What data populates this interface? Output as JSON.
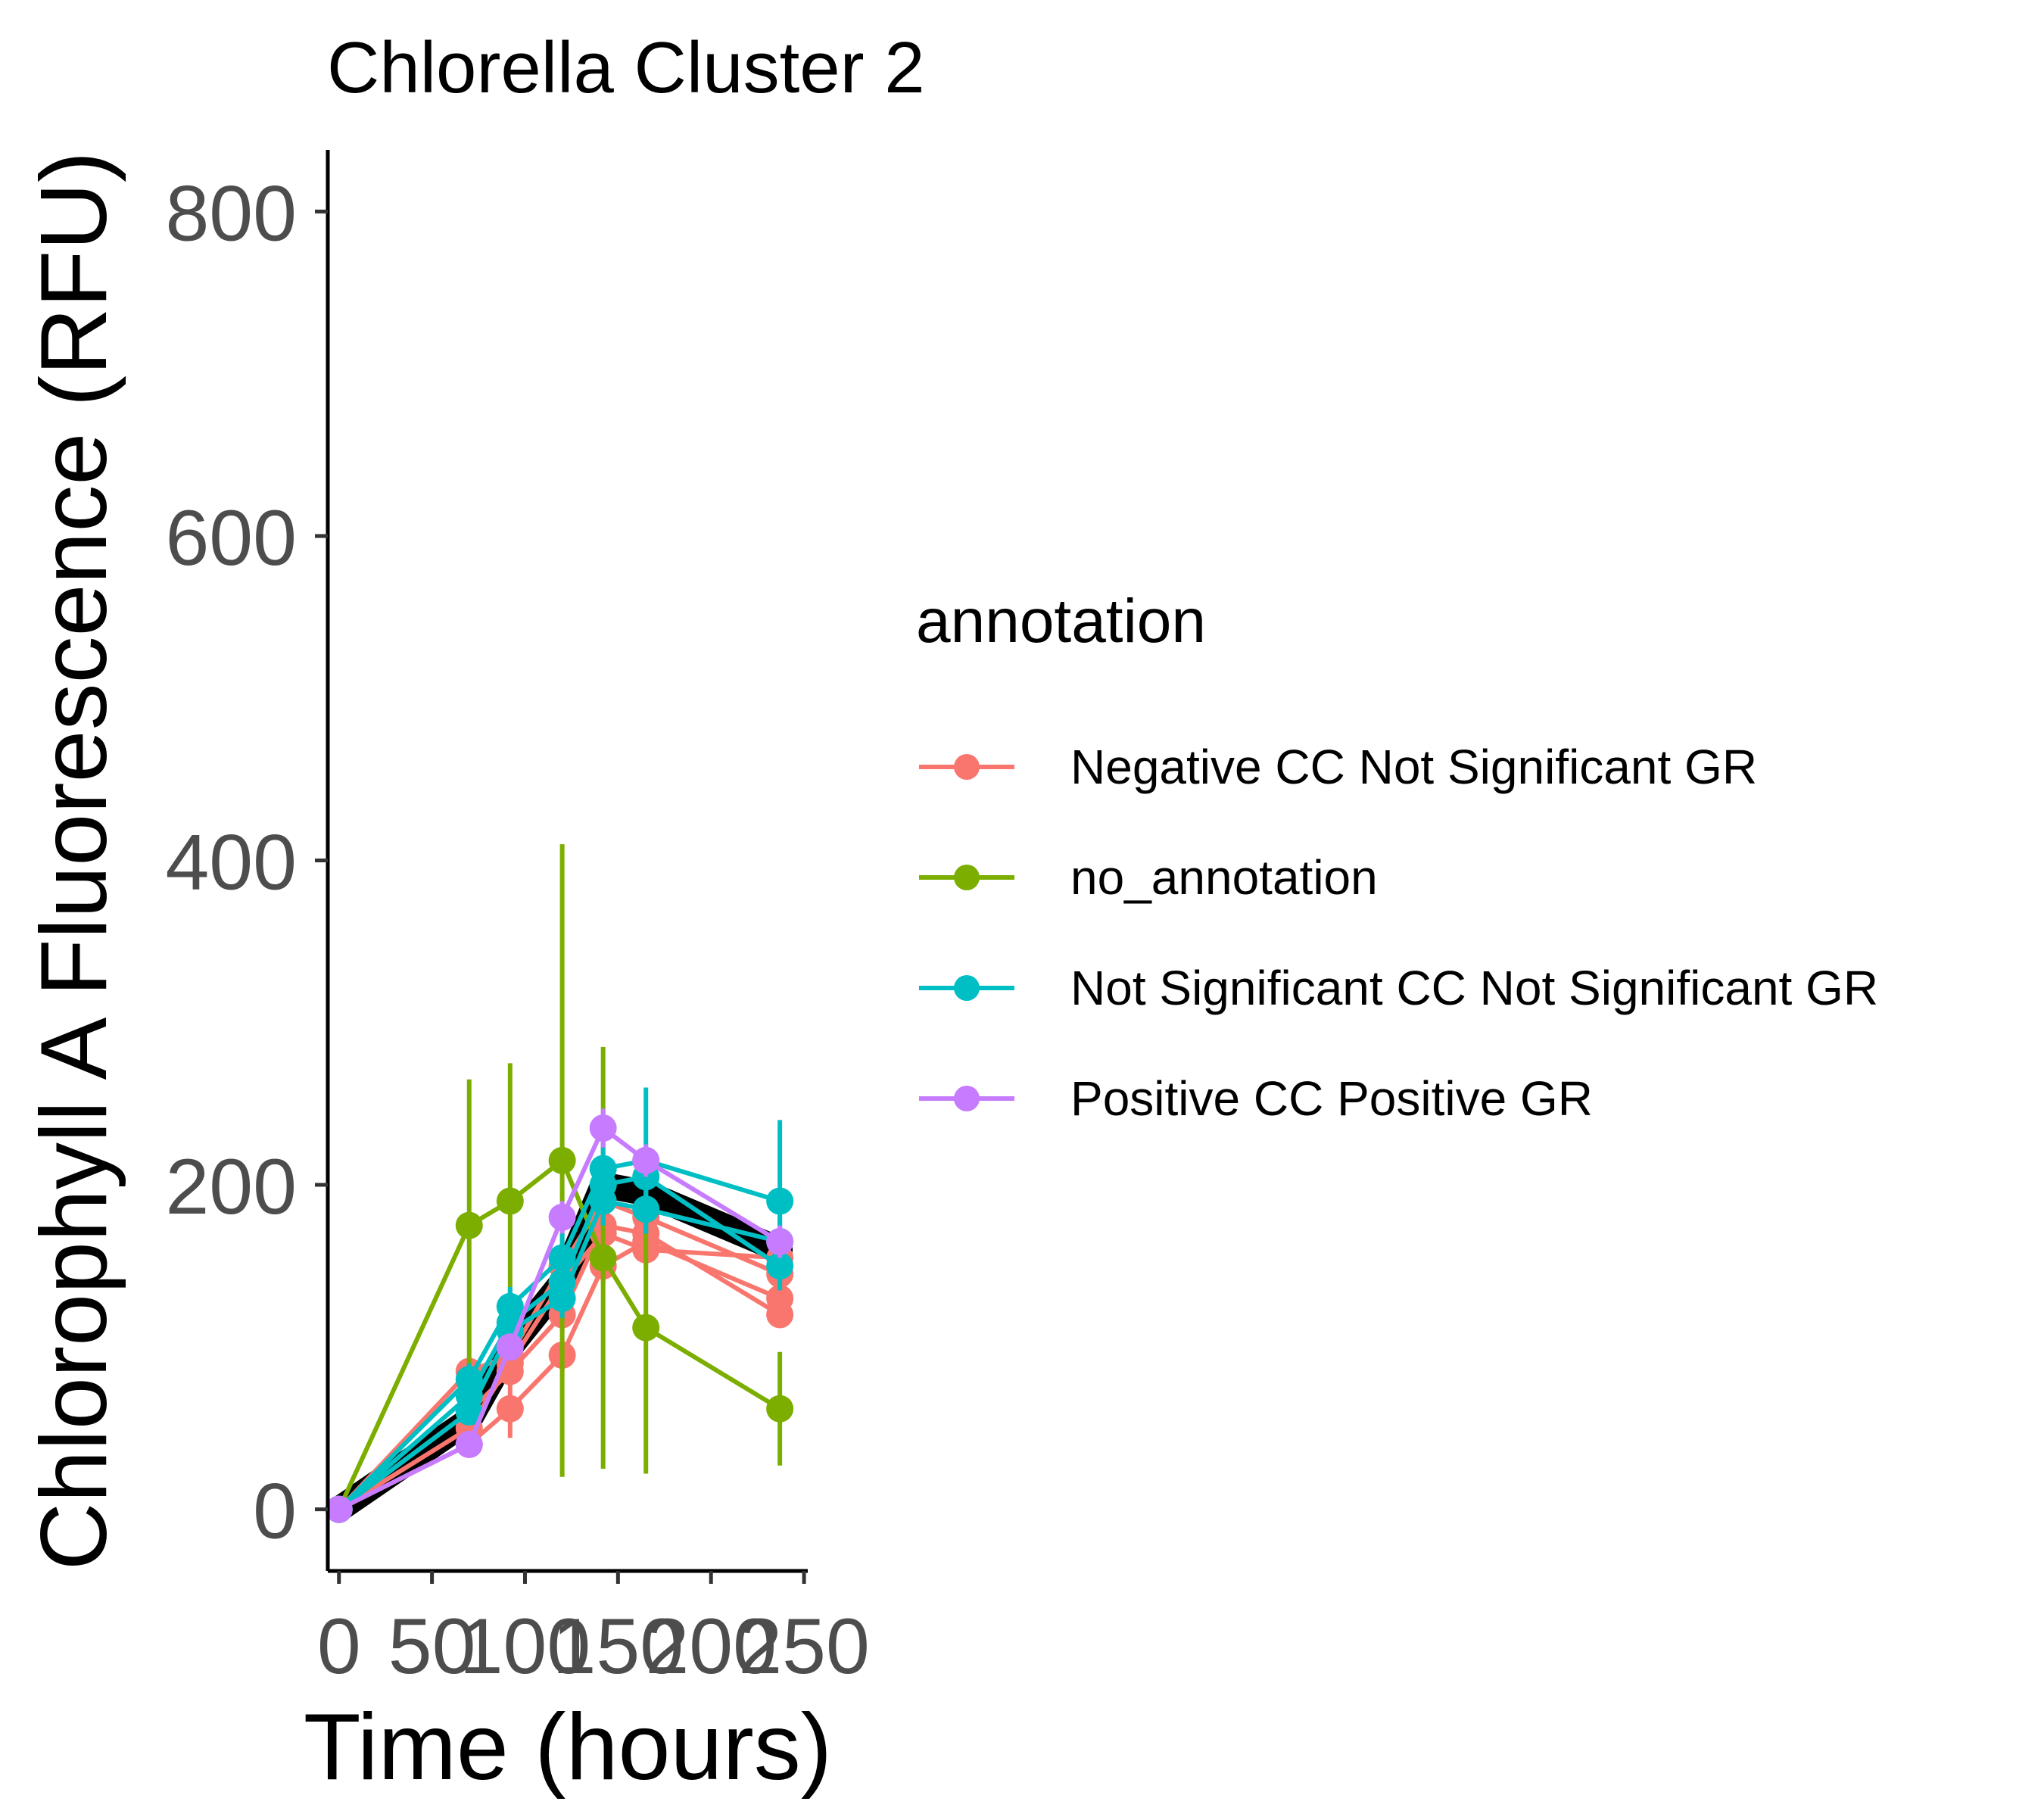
{
  "chart_data": {
    "type": "line",
    "title": "Chlorella Cluster 2",
    "xlabel": "Time (hours)",
    "ylabel": "Chlorophyll A Fluorescence (RFU)",
    "xlim": [
      -6,
      252
    ],
    "ylim": [
      -38,
      838
    ],
    "x_ticks": [
      0,
      50,
      100,
      150,
      200,
      250
    ],
    "y_ticks": [
      0,
      200,
      400,
      600,
      800
    ],
    "legend_title": "annotation",
    "legend_position": "right",
    "grid": false,
    "mean_line": {
      "color": "#000000",
      "x": [
        0,
        70,
        92,
        120,
        142,
        165,
        237
      ],
      "y": [
        0,
        55,
        100,
        140,
        200,
        195,
        160
      ]
    },
    "series": [
      {
        "name": "Negative CC Not Significant GR",
        "color": "#F8766D",
        "lines": [
          {
            "x": [
              0,
              70,
              92,
              120,
              142,
              165,
              237
            ],
            "y": [
              0,
              85,
              95,
              150,
              190,
              180,
              145
            ],
            "err": [
              0,
              8,
              10,
              12,
              12,
              12,
              10
            ]
          },
          {
            "x": [
              0,
              70,
              92,
              120,
              142,
              165,
              237
            ],
            "y": [
              0,
              40,
              62,
              95,
              150,
              165,
              130
            ],
            "err": [
              0,
              8,
              18,
              10,
              10,
              10,
              10
            ]
          },
          {
            "x": [
              0,
              70,
              92,
              120,
              142,
              165,
              237
            ],
            "y": [
              0,
              60,
              85,
              120,
              175,
              170,
              120
            ],
            "err": [
              0,
              6,
              8,
              10,
              10,
              10,
              8
            ]
          },
          {
            "x": [
              0,
              70,
              92,
              120,
              142,
              165,
              237
            ],
            "y": [
              0,
              50,
              90,
              140,
              170,
              160,
              155
            ],
            "err": [
              0,
              6,
              8,
              10,
              10,
              10,
              8
            ]
          }
        ]
      },
      {
        "name": "no_annotation",
        "color": "#7CAE00",
        "lines": [
          {
            "x": [
              0,
              70,
              92,
              120,
              142,
              165,
              237
            ],
            "y": [
              0,
              175,
              190,
              215,
              155,
              112,
              62
            ],
            "err": [
              0,
              90,
              85,
              195,
              130,
              90,
              35
            ]
          }
        ]
      },
      {
        "name": "Not Significant CC Not Significant GR",
        "color": "#00BFC4",
        "lines": [
          {
            "x": [
              0,
              70,
              92,
              120,
              142,
              165,
              237
            ],
            "y": [
              0,
              80,
              125,
              155,
              210,
              215,
              190
            ],
            "err": [
              0,
              10,
              12,
              15,
              25,
              45,
              50
            ]
          },
          {
            "x": [
              0,
              70,
              92,
              120,
              142,
              165,
              237
            ],
            "y": [
              0,
              60,
              110,
              130,
              190,
              185,
              165
            ],
            "err": [
              0,
              8,
              10,
              12,
              15,
              15,
              15
            ]
          },
          {
            "x": [
              0,
              70,
              92,
              120,
              142,
              165,
              237
            ],
            "y": [
              0,
              70,
              115,
              140,
              200,
              205,
              150
            ],
            "err": [
              0,
              8,
              10,
              12,
              15,
              15,
              15
            ]
          }
        ]
      },
      {
        "name": "Positive CC Positive GR",
        "color": "#C77CFF",
        "lines": [
          {
            "x": [
              0,
              70,
              92,
              120,
              142,
              165,
              237
            ],
            "y": [
              0,
              40,
              100,
              180,
              235,
              215,
              165
            ],
            "err": [
              0,
              6,
              8,
              10,
              12,
              10,
              10
            ]
          }
        ]
      }
    ]
  }
}
